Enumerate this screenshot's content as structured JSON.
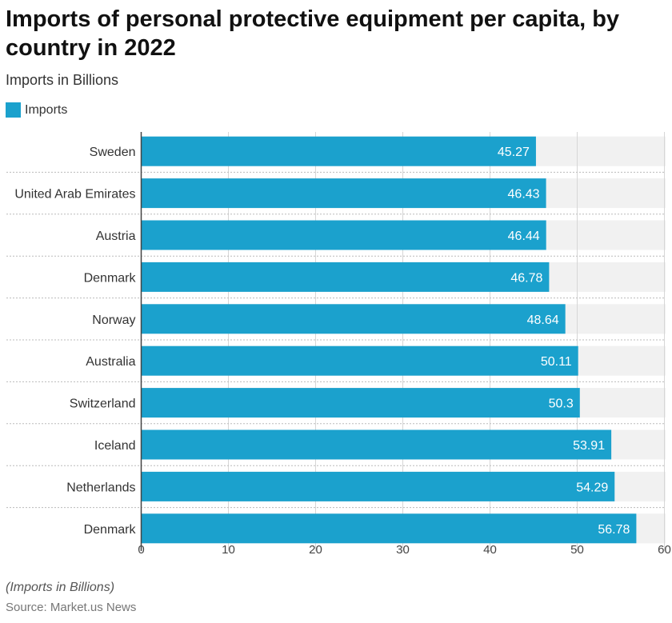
{
  "title": "Imports of personal protective equipment per capita, by country in 2022",
  "subtitle": "Imports in Billions",
  "legend": {
    "label": "Imports"
  },
  "footnote": "(Imports in Billions)",
  "source": "Source: Market.us News",
  "colors": {
    "bar": "#1ba1cd",
    "track": "#f1f1f1",
    "grid": "#d6d6d6",
    "axis": "#444444",
    "value_label": "#ffffff"
  },
  "chart_data": {
    "type": "bar",
    "orientation": "horizontal",
    "categories": [
      "Sweden",
      "United Arab Emirates",
      "Austria",
      "Denmark",
      "Norway",
      "Australia",
      "Switzerland",
      "Iceland",
      "Netherlands",
      "Denmark"
    ],
    "series": [
      {
        "name": "Imports",
        "values": [
          45.27,
          46.43,
          46.44,
          46.78,
          48.64,
          50.11,
          50.3,
          53.91,
          54.29,
          56.78
        ]
      }
    ],
    "value_labels": [
      "45.27",
      "46.43",
      "46.44",
      "46.78",
      "48.64",
      "50.11",
      "50.3",
      "53.91",
      "54.29",
      "56.78"
    ],
    "xlim": [
      0,
      60
    ],
    "xticks": [
      0,
      10,
      20,
      30,
      40,
      50,
      60
    ],
    "xlabel": "",
    "ylabel": "",
    "grid": true,
    "legend_position": "top-left"
  }
}
